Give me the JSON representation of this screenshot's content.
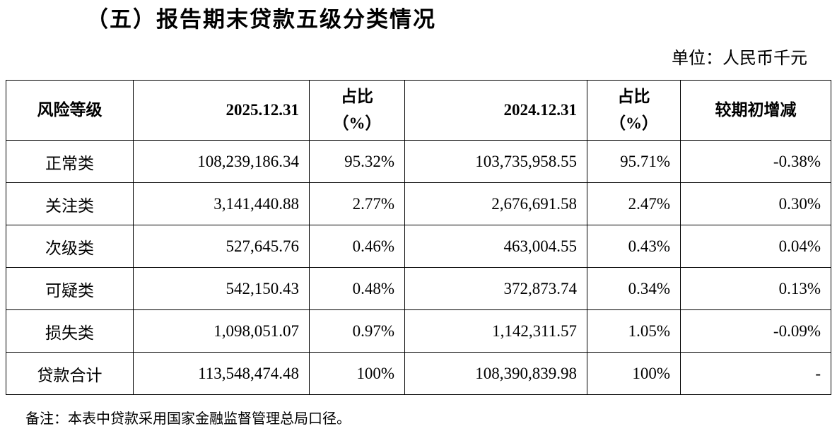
{
  "title": "（五）报告期末贷款五级分类情况",
  "unit": "单位：人民币千元",
  "table": {
    "header": [
      [
        "风险等级"
      ],
      [
        "2025.12.31"
      ],
      [
        "占比",
        "（%）"
      ],
      [
        "2024.12.31"
      ],
      [
        "占比",
        "（%）"
      ],
      [
        "较期初增减"
      ]
    ],
    "rows": [
      [
        "正常类",
        "108,239,186.34",
        "95.32%",
        "103,735,958.55",
        "95.71%",
        "-0.38%"
      ],
      [
        "关注类",
        "3,141,440.88",
        "2.77%",
        "2,676,691.58",
        "2.47%",
        "0.30%"
      ],
      [
        "次级类",
        "527,645.76",
        "0.46%",
        "463,004.55",
        "0.43%",
        "0.04%"
      ],
      [
        "可疑类",
        "542,150.43",
        "0.48%",
        "372,873.74",
        "0.34%",
        "0.13%"
      ],
      [
        "损失类",
        "1,098,051.07",
        "0.97%",
        "1,142,311.57",
        "1.05%",
        "-0.09%"
      ],
      [
        "贷款合计",
        "113,548,474.48",
        "100%",
        "108,390,839.98",
        "100%",
        "-"
      ]
    ]
  },
  "note": "备注：本表中贷款采用国家金融监督管理总局口径。"
}
